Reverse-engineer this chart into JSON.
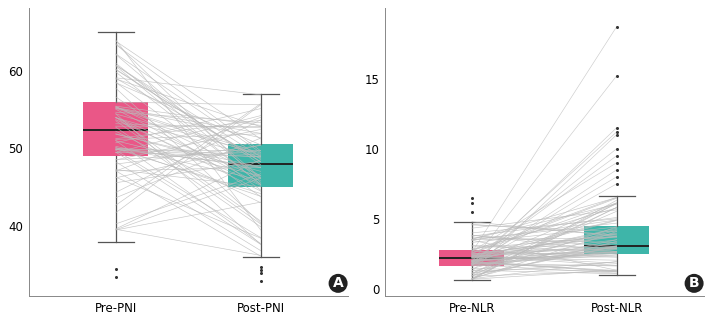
{
  "panel_A": {
    "xlabel_pre": "Pre-PNI",
    "xlabel_post": "Post-PNI",
    "pre_median": 52.3,
    "pre_q1": 49.0,
    "pre_q3": 56.0,
    "pre_whisker_low": 38.0,
    "pre_whisker_high": 65.0,
    "pre_outliers": [
      33.5,
      34.5
    ],
    "post_median": 48.0,
    "post_q1": 45.0,
    "post_q3": 50.5,
    "post_whisker_low": 36.0,
    "post_whisker_high": 57.0,
    "post_outliers": [
      33.0,
      34.0,
      34.3,
      34.7
    ],
    "ylim": [
      31,
      68
    ],
    "yticks": [
      40,
      50,
      60
    ],
    "color_pre": "#E8457A",
    "color_post": "#29ADA0",
    "line_color": "#BBBBBB",
    "label": "A"
  },
  "panel_B": {
    "xlabel_pre": "Pre-NLR",
    "xlabel_post": "Post-NLR",
    "pre_median": 2.2,
    "pre_q1": 1.65,
    "pre_q3": 2.75,
    "pre_whisker_low": 0.65,
    "pre_whisker_high": 4.8,
    "pre_outliers": [
      5.5,
      6.1,
      6.5
    ],
    "post_median": 3.1,
    "post_q1": 2.5,
    "post_q3": 4.5,
    "post_whisker_low": 1.0,
    "post_whisker_high": 6.6,
    "post_outliers": [
      7.5,
      8.0,
      8.5,
      9.0,
      9.5,
      10.0,
      11.0,
      11.2,
      11.5,
      15.2,
      18.7
    ],
    "ylim": [
      -0.5,
      20
    ],
    "yticks": [
      0,
      5,
      10,
      15
    ],
    "color_pre": "#E8457A",
    "color_post": "#29ADA0",
    "line_color": "#BBBBBB",
    "label": "B"
  },
  "n_lines": 80,
  "background_color": "#FFFFFF",
  "fontsize_tick": 8.5,
  "fontsize_label": 8.5,
  "fontsize_panel_label": 10
}
